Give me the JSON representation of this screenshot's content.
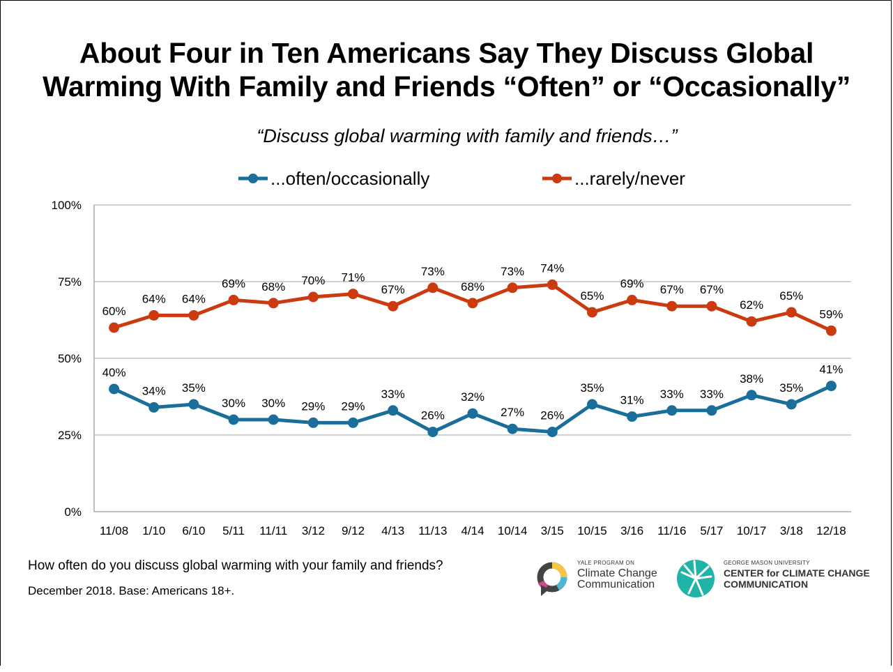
{
  "title_line1": "About Four in Ten Americans Say They Discuss Global",
  "title_line2": "Warming With Family and Friends “Often” or “Occasionally”",
  "subtitle": "“Discuss global warming with family and friends…”",
  "footnote_question": "How often do you discuss global warming with your family and friends?",
  "footnote_base": "December 2018. Base: Americans 18+.",
  "logos": {
    "yale_small": "YALE PROGRAM ON",
    "yale_line1": "Climate Change",
    "yale_line2": "Communication",
    "gmu_small": "GEORGE MASON UNIVERSITY",
    "gmu_line1": "CENTER for CLIMATE CHANGE",
    "gmu_line2": "COMMUNICATION"
  },
  "colors": {
    "often": "#1a6e9a",
    "rarely": "#cc3a10",
    "grid": "#a6a6a6"
  },
  "chart_data": {
    "type": "line",
    "categories": [
      "11/08",
      "1/10",
      "6/10",
      "5/11",
      "11/11",
      "3/12",
      "9/12",
      "4/13",
      "11/13",
      "4/14",
      "10/14",
      "3/15",
      "10/15",
      "3/16",
      "11/16",
      "5/17",
      "10/17",
      "3/18",
      "12/18"
    ],
    "series": [
      {
        "name": "...often/occasionally",
        "key": "often",
        "values": [
          40,
          34,
          35,
          30,
          30,
          29,
          29,
          33,
          26,
          32,
          27,
          26,
          35,
          31,
          33,
          33,
          38,
          35,
          41
        ]
      },
      {
        "name": "...rarely/never",
        "key": "rarely",
        "values": [
          60,
          64,
          64,
          69,
          68,
          70,
          71,
          67,
          73,
          68,
          73,
          74,
          65,
          69,
          67,
          67,
          62,
          65,
          59
        ]
      }
    ],
    "yticks": [
      "0%",
      "25%",
      "50%",
      "75%",
      "100%"
    ],
    "ylim": [
      0,
      100
    ],
    "unit": "%",
    "grid": true,
    "legend_position": "top"
  }
}
